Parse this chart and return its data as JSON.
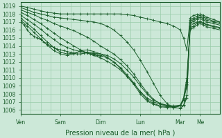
{
  "bg_color": "#cce8d8",
  "grid_major_color": "#99ccaa",
  "grid_minor_color": "#bbddcc",
  "line_color": "#1a5c2a",
  "xlabel": "Pression niveau de la mer( hPa )",
  "xlabel_fontsize": 7,
  "tick_fontsize": 5.5,
  "ylim": [
    1005.5,
    1019.5
  ],
  "xlim": [
    0,
    120
  ],
  "yticks": [
    1006,
    1007,
    1008,
    1009,
    1010,
    1011,
    1012,
    1013,
    1014,
    1015,
    1016,
    1017,
    1018,
    1019
  ],
  "xtick_labels": [
    "Ven",
    "Sam",
    "Dim",
    "Lun",
    "Mar",
    "Me"
  ],
  "xtick_positions": [
    0,
    24,
    48,
    72,
    96,
    108
  ],
  "lines": [
    {
      "x": [
        0,
        4,
        8,
        12,
        16,
        20,
        24,
        28,
        32,
        36,
        40,
        44,
        48,
        52,
        56,
        60,
        64,
        68,
        72,
        76,
        80,
        84,
        88,
        92,
        96,
        98,
        100,
        102,
        104,
        106,
        108,
        110,
        112,
        116,
        120
      ],
      "y": [
        1019.0,
        1018.8,
        1018.6,
        1018.4,
        1018.2,
        1018.1,
        1018.0,
        1018.0,
        1018.0,
        1018.0,
        1018.0,
        1018.0,
        1018.0,
        1018.0,
        1018.0,
        1018.0,
        1017.9,
        1017.8,
        1017.6,
        1017.4,
        1017.2,
        1017.0,
        1016.8,
        1016.5,
        1016.0,
        1015.0,
        1013.5,
        1017.5,
        1017.8,
        1017.9,
        1018.0,
        1017.8,
        1017.6,
        1017.3,
        1017.0
      ]
    },
    {
      "x": [
        0,
        4,
        8,
        12,
        16,
        20,
        24,
        28,
        32,
        36,
        40,
        44,
        48,
        52,
        56,
        60,
        64,
        68,
        72,
        76,
        80,
        84,
        88,
        92,
        96,
        98,
        100,
        102,
        104,
        106,
        108,
        110,
        112,
        116,
        120
      ],
      "y": [
        1018.8,
        1018.5,
        1018.2,
        1018.0,
        1017.8,
        1017.6,
        1017.5,
        1017.4,
        1017.3,
        1017.2,
        1017.1,
        1017.0,
        1016.8,
        1016.5,
        1016.0,
        1015.3,
        1014.5,
        1013.5,
        1012.2,
        1010.8,
        1009.3,
        1007.8,
        1006.8,
        1006.3,
        1006.2,
        1006.5,
        1007.5,
        1017.2,
        1017.5,
        1017.7,
        1017.8,
        1017.6,
        1017.4,
        1017.1,
        1017.0
      ]
    },
    {
      "x": [
        0,
        4,
        8,
        12,
        16,
        20,
        24,
        28,
        32,
        36,
        40,
        44,
        48,
        52,
        56,
        60,
        64,
        68,
        72,
        76,
        80,
        84,
        88,
        92,
        96,
        98,
        100,
        102,
        104,
        106,
        108,
        110,
        112,
        116,
        120
      ],
      "y": [
        1018.5,
        1018.2,
        1017.9,
        1017.5,
        1017.2,
        1016.8,
        1016.5,
        1016.2,
        1015.9,
        1015.5,
        1015.1,
        1014.6,
        1014.0,
        1013.5,
        1013.0,
        1012.3,
        1011.5,
        1010.5,
        1009.3,
        1008.2,
        1007.3,
        1006.8,
        1006.5,
        1006.3,
        1006.2,
        1006.6,
        1007.8,
        1017.0,
        1017.3,
        1017.5,
        1017.6,
        1017.4,
        1017.2,
        1017.0,
        1016.8
      ]
    },
    {
      "x": [
        0,
        4,
        8,
        12,
        16,
        20,
        24,
        28,
        32,
        36,
        40,
        44,
        48,
        52,
        56,
        60,
        64,
        68,
        72,
        76,
        80,
        84,
        88,
        92,
        96,
        98,
        100,
        102,
        104,
        106,
        108,
        110,
        112,
        116,
        120
      ],
      "y": [
        1018.2,
        1017.8,
        1017.3,
        1016.8,
        1016.2,
        1015.6,
        1015.0,
        1014.5,
        1014.0,
        1013.5,
        1013.1,
        1012.8,
        1012.5,
        1012.1,
        1011.6,
        1011.0,
        1010.2,
        1009.3,
        1008.3,
        1007.5,
        1007.0,
        1006.7,
        1006.5,
        1006.4,
        1006.5,
        1007.2,
        1009.0,
        1016.8,
        1017.1,
        1017.3,
        1017.4,
        1017.2,
        1017.0,
        1016.8,
        1016.6
      ]
    },
    {
      "x": [
        0,
        4,
        8,
        12,
        16,
        20,
        24,
        28,
        32,
        36,
        40,
        44,
        48,
        52,
        56,
        60,
        64,
        68,
        72,
        76,
        80,
        84,
        88,
        92,
        96,
        98,
        100,
        102,
        104,
        106,
        108,
        110,
        112,
        116,
        120
      ],
      "y": [
        1017.8,
        1017.3,
        1016.7,
        1016.1,
        1015.4,
        1014.8,
        1014.2,
        1013.8,
        1013.5,
        1013.3,
        1013.2,
        1013.1,
        1013.0,
        1012.8,
        1012.4,
        1011.8,
        1011.0,
        1010.1,
        1009.0,
        1008.0,
        1007.2,
        1006.8,
        1006.6,
        1006.5,
        1006.6,
        1007.5,
        1010.0,
        1016.5,
        1016.8,
        1017.0,
        1017.1,
        1016.9,
        1016.7,
        1016.5,
        1016.3
      ]
    },
    {
      "x": [
        0,
        4,
        8,
        12,
        16,
        20,
        24,
        28,
        32,
        36,
        40,
        44,
        48,
        52,
        56,
        60,
        64,
        68,
        72,
        76,
        80,
        84,
        88,
        92,
        96,
        98,
        100,
        102,
        104,
        106,
        108,
        110,
        112,
        116,
        120
      ],
      "y": [
        1017.5,
        1016.8,
        1016.1,
        1015.3,
        1014.5,
        1013.8,
        1013.2,
        1013.0,
        1013.1,
        1013.3,
        1013.2,
        1013.0,
        1012.8,
        1012.5,
        1012.0,
        1011.3,
        1010.4,
        1009.4,
        1008.2,
        1007.3,
        1006.8,
        1006.5,
        1006.4,
        1006.4,
        1006.5,
        1007.3,
        1009.5,
        1016.2,
        1016.5,
        1016.8,
        1017.0,
        1016.8,
        1016.6,
        1016.4,
        1016.2
      ]
    },
    {
      "x": [
        0,
        4,
        8,
        12,
        16,
        20,
        24,
        28,
        32,
        36,
        40,
        44,
        48,
        52,
        56,
        60,
        64,
        68,
        72,
        76,
        80,
        84,
        88,
        92,
        96,
        98,
        100,
        102,
        104,
        106,
        108,
        110,
        112,
        116,
        120
      ],
      "y": [
        1017.2,
        1016.5,
        1015.7,
        1014.9,
        1014.1,
        1013.4,
        1013.0,
        1012.8,
        1013.0,
        1013.4,
        1013.5,
        1013.3,
        1013.0,
        1012.6,
        1012.0,
        1011.2,
        1010.2,
        1009.2,
        1008.0,
        1007.1,
        1006.7,
        1006.4,
        1006.3,
        1006.3,
        1006.5,
        1007.2,
        1009.2,
        1016.0,
        1016.3,
        1016.6,
        1016.8,
        1016.6,
        1016.4,
        1016.2,
        1016.0
      ]
    },
    {
      "x": [
        0,
        2,
        4,
        6,
        8,
        10,
        12,
        14,
        16,
        18,
        20,
        22,
        24,
        26,
        28,
        30,
        32,
        34,
        36,
        38,
        40,
        42,
        44,
        46,
        48
      ],
      "y": [
        1017.0,
        1016.6,
        1016.0,
        1015.5,
        1015.2,
        1015.0,
        1014.8,
        1014.5,
        1014.2,
        1014.0,
        1013.8,
        1013.6,
        1013.5,
        1013.4,
        1013.3,
        1013.2,
        1013.1,
        1013.0,
        1013.0,
        1013.1,
        1013.2,
        1013.0,
        1012.9,
        1012.8,
        1012.7
      ]
    }
  ]
}
